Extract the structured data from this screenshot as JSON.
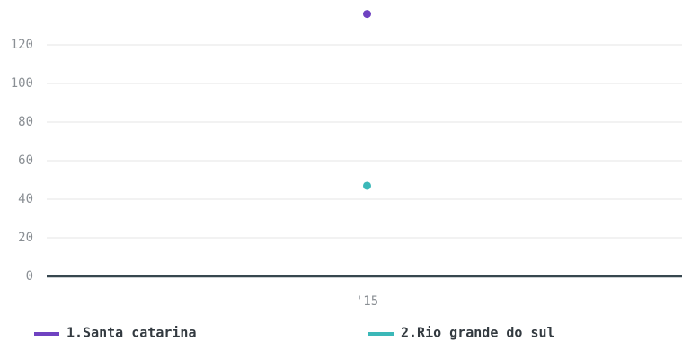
{
  "chart_data": {
    "type": "line",
    "categories": [
      "'15"
    ],
    "series": [
      {
        "name": "1.Santa catarina",
        "color": "#6f42c1",
        "values": [
          136
        ]
      },
      {
        "name": "2.Rio grande do sul",
        "color": "#3bb8b8",
        "values": [
          47
        ]
      }
    ],
    "ylim": [
      0,
      140
    ],
    "yticks": [
      0,
      20,
      40,
      60,
      80,
      100,
      120
    ],
    "grid": true
  }
}
